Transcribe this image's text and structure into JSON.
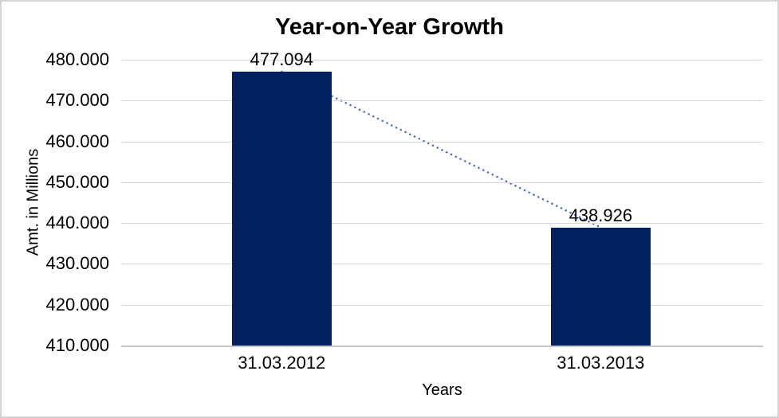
{
  "frame": {
    "background": "#ffffff",
    "border_color": "#d4d4d4"
  },
  "chart_data": {
    "type": "bar",
    "title": "Year-on-Year Growth",
    "xlabel": "Years",
    "ylabel": "Amt. in Millions",
    "categories": [
      "31.03.2012",
      "31.03.2013"
    ],
    "values": [
      477094,
      438926
    ],
    "value_labels": [
      "477.094",
      "438.926"
    ],
    "ylim": [
      410000,
      480000
    ],
    "ytick_step": 10000,
    "ytick_labels": [
      "410.000",
      "420.000",
      "430.000",
      "440.000",
      "450.000",
      "460.000",
      "470.000",
      "480.000"
    ],
    "grid": true,
    "legend_position": "none",
    "bar_color": "#002060",
    "gridline_color": "#d9d9d9",
    "axis_line_color": "#c6c6c6",
    "text_color": "#000000",
    "trendline": {
      "type": "linear",
      "style": "dotted",
      "color": "#4472c4",
      "connects": [
        "31.03.2012",
        "31.03.2013"
      ]
    }
  }
}
